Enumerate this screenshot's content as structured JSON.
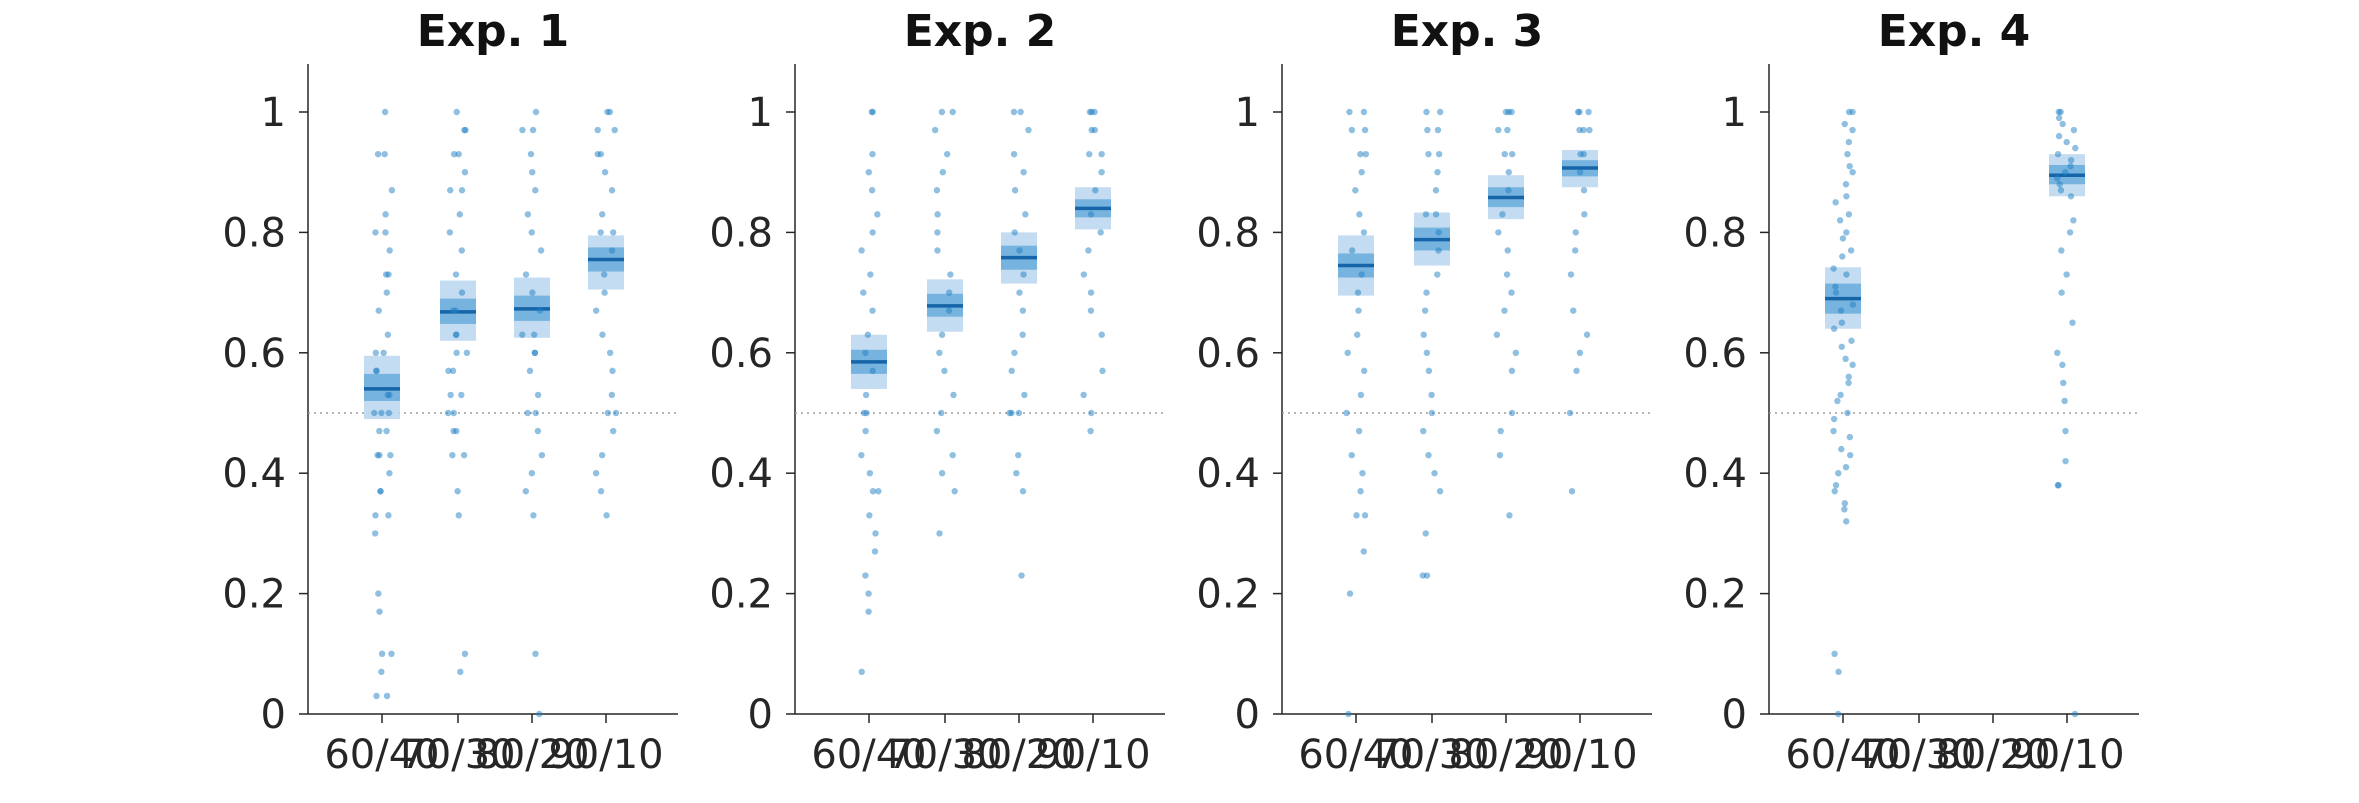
{
  "chart_data": [
    {
      "type": "scatter",
      "title": "Exp. 1",
      "categories": [
        "60/40",
        "70/30",
        "80/20",
        "90/10"
      ],
      "ylim": [
        0,
        1.08
      ],
      "yticks": [
        "0",
        "0.2",
        "0.4",
        "0.6",
        "0.8",
        "1"
      ],
      "reference_line": 0.5,
      "summary": [
        {
          "category": "60/40",
          "mean": 0.54,
          "inner": [
            0.52,
            0.565
          ],
          "outer": [
            0.49,
            0.595
          ]
        },
        {
          "category": "70/30",
          "mean": 0.668,
          "inner": [
            0.648,
            0.69
          ],
          "outer": [
            0.62,
            0.72
          ]
        },
        {
          "category": "80/20",
          "mean": 0.673,
          "inner": [
            0.653,
            0.695
          ],
          "outer": [
            0.625,
            0.725
          ]
        },
        {
          "category": "90/10",
          "mean": 0.755,
          "inner": [
            0.735,
            0.775
          ],
          "outer": [
            0.705,
            0.795
          ]
        }
      ],
      "points": [
        [
          1.0,
          0.93,
          0.93,
          0.87,
          0.83,
          0.8,
          0.8,
          0.77,
          0.73,
          0.73,
          0.7,
          0.67,
          0.63,
          0.6,
          0.6,
          0.57,
          0.57,
          0.53,
          0.53,
          0.5,
          0.5,
          0.5,
          0.47,
          0.47,
          0.43,
          0.43,
          0.43,
          0.4,
          0.37,
          0.37,
          0.33,
          0.33,
          0.3,
          0.2,
          0.17,
          0.1,
          0.1,
          0.07,
          0.03,
          0.03
        ],
        [
          1.0,
          0.97,
          0.97,
          0.93,
          0.93,
          0.9,
          0.87,
          0.87,
          0.83,
          0.8,
          0.77,
          0.73,
          0.7,
          0.67,
          0.67,
          0.63,
          0.63,
          0.6,
          0.6,
          0.57,
          0.57,
          0.53,
          0.53,
          0.5,
          0.5,
          0.47,
          0.47,
          0.43,
          0.43,
          0.37,
          0.33,
          0.1,
          0.07
        ],
        [
          1.0,
          0.97,
          0.97,
          0.93,
          0.9,
          0.87,
          0.83,
          0.8,
          0.77,
          0.73,
          0.7,
          0.67,
          0.63,
          0.63,
          0.6,
          0.6,
          0.57,
          0.53,
          0.5,
          0.5,
          0.47,
          0.43,
          0.4,
          0.37,
          0.33,
          0.1,
          0.0
        ],
        [
          1.0,
          1.0,
          0.97,
          0.97,
          0.93,
          0.93,
          0.9,
          0.87,
          0.83,
          0.8,
          0.8,
          0.77,
          0.73,
          0.7,
          0.67,
          0.63,
          0.6,
          0.57,
          0.53,
          0.5,
          0.5,
          0.47,
          0.43,
          0.4,
          0.37,
          0.33
        ]
      ]
    },
    {
      "type": "scatter",
      "title": "Exp. 2",
      "categories": [
        "60/40",
        "70/30",
        "80/20",
        "90/10"
      ],
      "ylim": [
        0,
        1.08
      ],
      "yticks": [
        "0",
        "0.2",
        "0.4",
        "0.6",
        "0.8",
        "1"
      ],
      "reference_line": 0.5,
      "summary": [
        {
          "category": "60/40",
          "mean": 0.585,
          "inner": [
            0.565,
            0.605
          ],
          "outer": [
            0.54,
            0.63
          ]
        },
        {
          "category": "70/30",
          "mean": 0.678,
          "inner": [
            0.66,
            0.698
          ],
          "outer": [
            0.635,
            0.722
          ]
        },
        {
          "category": "80/20",
          "mean": 0.758,
          "inner": [
            0.738,
            0.778
          ],
          "outer": [
            0.715,
            0.8
          ]
        },
        {
          "category": "90/10",
          "mean": 0.84,
          "inner": [
            0.825,
            0.855
          ],
          "outer": [
            0.805,
            0.875
          ]
        }
      ],
      "points": [
        [
          1.0,
          1.0,
          0.93,
          0.9,
          0.87,
          0.83,
          0.8,
          0.77,
          0.73,
          0.7,
          0.67,
          0.63,
          0.6,
          0.57,
          0.53,
          0.5,
          0.5,
          0.47,
          0.43,
          0.4,
          0.37,
          0.37,
          0.33,
          0.3,
          0.27,
          0.23,
          0.2,
          0.17,
          0.07
        ],
        [
          1.0,
          1.0,
          0.97,
          0.93,
          0.9,
          0.87,
          0.83,
          0.8,
          0.77,
          0.73,
          0.7,
          0.67,
          0.63,
          0.6,
          0.57,
          0.53,
          0.5,
          0.47,
          0.43,
          0.4,
          0.37,
          0.3
        ],
        [
          1.0,
          1.0,
          0.97,
          0.93,
          0.9,
          0.87,
          0.83,
          0.8,
          0.77,
          0.73,
          0.7,
          0.67,
          0.63,
          0.6,
          0.57,
          0.53,
          0.5,
          0.5,
          0.5,
          0.43,
          0.4,
          0.37,
          0.23
        ],
        [
          1.0,
          1.0,
          1.0,
          0.97,
          0.97,
          0.93,
          0.93,
          0.9,
          0.87,
          0.83,
          0.8,
          0.77,
          0.73,
          0.7,
          0.67,
          0.63,
          0.57,
          0.53,
          0.5,
          0.47
        ]
      ]
    },
    {
      "type": "scatter",
      "title": "Exp. 3",
      "categories": [
        "60/40",
        "70/30",
        "80/20",
        "90/10"
      ],
      "ylim": [
        0,
        1.08
      ],
      "yticks": [
        "0",
        "0.2",
        "0.4",
        "0.6",
        "0.8",
        "1"
      ],
      "reference_line": 0.5,
      "summary": [
        {
          "category": "60/40",
          "mean": 0.745,
          "inner": [
            0.725,
            0.765
          ],
          "outer": [
            0.695,
            0.795
          ]
        },
        {
          "category": "70/30",
          "mean": 0.788,
          "inner": [
            0.77,
            0.808
          ],
          "outer": [
            0.745,
            0.833
          ]
        },
        {
          "category": "80/20",
          "mean": 0.858,
          "inner": [
            0.842,
            0.875
          ],
          "outer": [
            0.822,
            0.895
          ]
        },
        {
          "category": "90/10",
          "mean": 0.907,
          "inner": [
            0.893,
            0.92
          ],
          "outer": [
            0.875,
            0.937
          ]
        }
      ],
      "points": [
        [
          1.0,
          1.0,
          0.97,
          0.97,
          0.93,
          0.93,
          0.9,
          0.87,
          0.83,
          0.8,
          0.77,
          0.73,
          0.7,
          0.67,
          0.63,
          0.6,
          0.57,
          0.53,
          0.5,
          0.47,
          0.43,
          0.4,
          0.37,
          0.33,
          0.33,
          0.27,
          0.2,
          0.0
        ],
        [
          1.0,
          1.0,
          0.97,
          0.97,
          0.93,
          0.93,
          0.9,
          0.87,
          0.83,
          0.83,
          0.8,
          0.77,
          0.73,
          0.7,
          0.67,
          0.63,
          0.6,
          0.57,
          0.53,
          0.5,
          0.47,
          0.43,
          0.4,
          0.37,
          0.3,
          0.23,
          0.23
        ],
        [
          1.0,
          1.0,
          1.0,
          0.97,
          0.97,
          0.93,
          0.93,
          0.9,
          0.87,
          0.83,
          0.8,
          0.77,
          0.73,
          0.7,
          0.67,
          0.63,
          0.6,
          0.57,
          0.5,
          0.47,
          0.43,
          0.33
        ],
        [
          1.0,
          1.0,
          1.0,
          0.97,
          0.97,
          0.97,
          0.93,
          0.93,
          0.9,
          0.87,
          0.83,
          0.8,
          0.77,
          0.73,
          0.67,
          0.63,
          0.6,
          0.57,
          0.5,
          0.37
        ]
      ]
    },
    {
      "type": "scatter",
      "title": "Exp. 4",
      "categories": [
        "60/40",
        "70/30",
        "80/20",
        "90/10"
      ],
      "ylim": [
        0,
        1.08
      ],
      "yticks": [
        "0",
        "0.2",
        "0.4",
        "0.6",
        "0.8",
        "1"
      ],
      "reference_line": 0.5,
      "summary": [
        {
          "category": "60/40",
          "mean": 0.69,
          "inner": [
            0.665,
            0.715
          ],
          "outer": [
            0.64,
            0.742
          ]
        },
        {
          "category": "90/10",
          "mean": 0.895,
          "inner": [
            0.88,
            0.912
          ],
          "outer": [
            0.86,
            0.93
          ]
        }
      ],
      "points": [
        [
          1.0,
          1.0,
          0.98,
          0.97,
          0.95,
          0.93,
          0.91,
          0.9,
          0.88,
          0.86,
          0.85,
          0.83,
          0.82,
          0.8,
          0.79,
          0.77,
          0.76,
          0.74,
          0.73,
          0.71,
          0.7,
          0.68,
          0.67,
          0.65,
          0.64,
          0.62,
          0.61,
          0.59,
          0.58,
          0.56,
          0.55,
          0.53,
          0.52,
          0.5,
          0.49,
          0.47,
          0.46,
          0.44,
          0.43,
          0.41,
          0.4,
          0.38,
          0.37,
          0.35,
          0.34,
          0.32,
          0.1,
          0.07,
          0.0
        ],
        [],
        [],
        [
          1.0,
          1.0,
          0.99,
          0.98,
          0.97,
          0.96,
          0.95,
          0.94,
          0.93,
          0.92,
          0.91,
          0.9,
          0.89,
          0.88,
          0.87,
          0.86,
          0.82,
          0.8,
          0.77,
          0.73,
          0.7,
          0.65,
          0.6,
          0.58,
          0.55,
          0.52,
          0.47,
          0.42,
          0.38,
          0.38,
          0.0
        ]
      ]
    }
  ],
  "colors": {
    "points": "#1f7fc4",
    "outer_band": "#b9d6ee",
    "inner_band": "#5da5d8",
    "mean_line": "#1565a8",
    "axis": "#262626",
    "reference_line": "#9e9e9e"
  }
}
